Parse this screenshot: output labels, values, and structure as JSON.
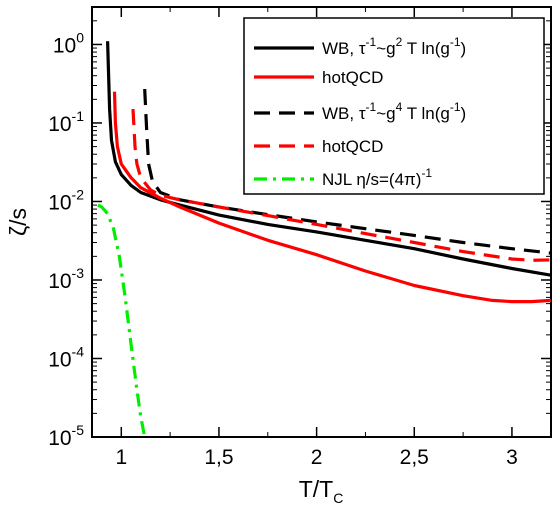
{
  "chart_data": {
    "type": "line",
    "xlabel": "T/T",
    "xlabel_sub": "C",
    "ylabel": "ζ/s",
    "yscale": "log",
    "xlim": [
      0.85,
      3.2
    ],
    "ylim": [
      1e-05,
      3
    ],
    "grid": false,
    "legend_position": "top-right",
    "x_ticks": [
      {
        "value": 1,
        "label": "1"
      },
      {
        "value": 1.5,
        "label": "1,5"
      },
      {
        "value": 2,
        "label": "2"
      },
      {
        "value": 2.5,
        "label": "2,5"
      },
      {
        "value": 3,
        "label": "3"
      }
    ],
    "y_ticks": [
      {
        "value": 1,
        "label": "10",
        "exp": "0"
      },
      {
        "value": 0.1,
        "label": "10",
        "exp": "-1"
      },
      {
        "value": 0.01,
        "label": "10",
        "exp": "-2"
      },
      {
        "value": 0.001,
        "label": "10",
        "exp": "-3"
      },
      {
        "value": 0.0001,
        "label": "10",
        "exp": "-4"
      },
      {
        "value": 1e-05,
        "label": "10",
        "exp": "-5"
      }
    ],
    "series": [
      {
        "name": "WB, τ⁻¹~g² T ln(g⁻¹)",
        "legend": {
          "pre": "WB,  τ",
          "sup1": "-1",
          "mid": "~g",
          "sup2": "2",
          "post": " T ln(g",
          "sup3": "-1",
          "end": ")"
        },
        "color": "#000000",
        "dash": "solid",
        "x": [
          0.93,
          0.94,
          0.95,
          0.97,
          1.0,
          1.05,
          1.1,
          1.2,
          1.3,
          1.5,
          1.75,
          2.0,
          2.25,
          2.5,
          2.75,
          3.0,
          3.2
        ],
        "y": [
          1.1,
          0.15,
          0.06,
          0.032,
          0.022,
          0.016,
          0.013,
          0.0105,
          0.009,
          0.0067,
          0.0051,
          0.0041,
          0.0032,
          0.0025,
          0.00185,
          0.0014,
          0.00115
        ]
      },
      {
        "name": "hotQCD",
        "legend": {
          "pre": "hotQCD"
        },
        "color": "#ff0000",
        "dash": "solid",
        "x": [
          0.965,
          0.97,
          0.98,
          1.0,
          1.05,
          1.1,
          1.2,
          1.3,
          1.5,
          1.75,
          2.0,
          2.25,
          2.5,
          2.75,
          2.9,
          3.0,
          3.1,
          3.2
        ],
        "y": [
          0.25,
          0.1,
          0.05,
          0.03,
          0.02,
          0.015,
          0.011,
          0.0085,
          0.0053,
          0.0032,
          0.0021,
          0.0013,
          0.00085,
          0.00063,
          0.00055,
          0.00053,
          0.00053,
          0.00055
        ]
      },
      {
        "name": "WB, τ⁻¹~g⁴ T ln(g⁻¹)",
        "legend": {
          "pre": "WB,  τ",
          "sup1": "-1",
          "mid": "~g",
          "sup2": "4",
          "post": " T ln(g",
          "sup3": "-1",
          "end": ")"
        },
        "color": "#000000",
        "dash": "dashed",
        "x": [
          1.12,
          1.13,
          1.14,
          1.16,
          1.2,
          1.3,
          1.5,
          1.75,
          2.0,
          2.25,
          2.5,
          2.75,
          3.0,
          3.2
        ],
        "y": [
          0.27,
          0.08,
          0.03,
          0.018,
          0.013,
          0.0105,
          0.0085,
          0.0068,
          0.0055,
          0.0045,
          0.0037,
          0.003,
          0.0025,
          0.0022
        ]
      },
      {
        "name": "hotQCD",
        "legend": {
          "pre": "hotQCD"
        },
        "color": "#ff0000",
        "dash": "dashed",
        "x": [
          1.06,
          1.07,
          1.08,
          1.1,
          1.15,
          1.2,
          1.3,
          1.5,
          1.75,
          2.0,
          2.25,
          2.5,
          2.75,
          3.0,
          3.1,
          3.2
        ],
        "y": [
          0.15,
          0.05,
          0.03,
          0.02,
          0.014,
          0.012,
          0.0105,
          0.0085,
          0.0066,
          0.0051,
          0.0039,
          0.003,
          0.0023,
          0.00185,
          0.00178,
          0.0018
        ]
      },
      {
        "name": "NJL η/s=(4π)⁻¹",
        "legend": {
          "pre": "NJL η/s=(4π)",
          "sup1": "-1"
        },
        "color": "#00ee00",
        "dash": "dashdot",
        "x": [
          0.88,
          0.9,
          0.93,
          0.96,
          0.99,
          1.02,
          1.05,
          1.08,
          1.1,
          1.12,
          1.14
        ],
        "y": [
          0.009,
          0.0085,
          0.007,
          0.0045,
          0.002,
          0.0006,
          0.00015,
          4e-05,
          1.8e-05,
          1e-05,
          7e-06
        ]
      }
    ]
  }
}
